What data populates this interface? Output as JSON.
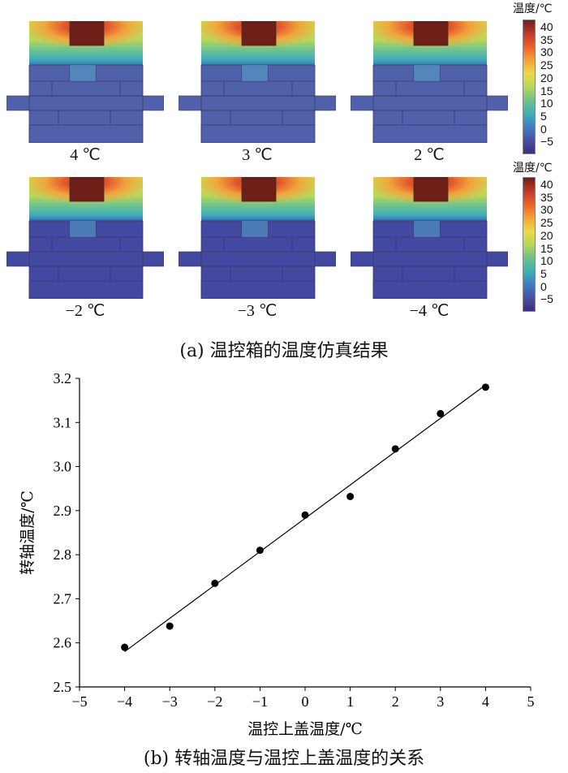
{
  "panel_a": {
    "sim_labels": [
      "4 ℃",
      "3 ℃",
      "2 ℃",
      "−2 ℃",
      "−3 ℃",
      "−4 ℃"
    ],
    "colorbar_title": "温度/℃",
    "colorbar_ticks": [
      "40",
      "35",
      "30",
      "25",
      "20",
      "15",
      "10",
      "5",
      "0",
      "−5"
    ],
    "colorbar_colors": [
      "#6e1f18",
      "#c0392b",
      "#e8632b",
      "#f2a33a",
      "#e8d94a",
      "#b9d65a",
      "#6cc28a",
      "#3fb0b5",
      "#3f7ec0",
      "#4a4fa0",
      "#3b2f7d"
    ],
    "caption": "(a)  温控箱的温度仿真结果"
  },
  "panel_b": {
    "caption": "(b)  转轴温度与温控上盖温度的关系"
  },
  "chart_data": {
    "type": "scatter",
    "x": [
      -4,
      -3,
      -2,
      -1,
      0,
      1,
      2,
      3,
      4
    ],
    "y": [
      2.59,
      2.638,
      2.735,
      2.81,
      2.89,
      2.932,
      3.04,
      3.12,
      3.18
    ],
    "fit_line": {
      "x": [
        -4,
        4
      ],
      "y": [
        2.58,
        3.185
      ]
    },
    "xlabel": "温控上盖温度/℃",
    "ylabel": "转轴温度/℃",
    "xlim": [
      -5,
      5
    ],
    "ylim": [
      2.5,
      3.2
    ],
    "xticks": [
      "−5",
      "−4",
      "−3",
      "−2",
      "−1",
      "0",
      "1",
      "2",
      "3",
      "4",
      "5"
    ],
    "yticks": [
      "2.5",
      "2.6",
      "2.7",
      "2.8",
      "2.9",
      "3.0",
      "3.1",
      "3.2"
    ],
    "grid": false
  }
}
